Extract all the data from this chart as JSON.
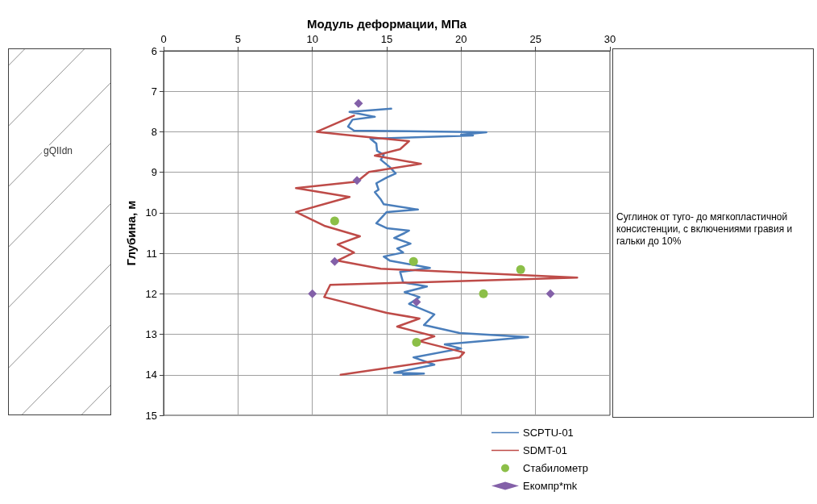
{
  "chart_data": {
    "type": "line",
    "xlabel": "Модуль деформации, МПа",
    "ylabel": "Глубина, м",
    "xlim": [
      0,
      30
    ],
    "xticks": [
      0,
      5,
      10,
      15,
      20,
      25,
      30
    ],
    "ylim": [
      15,
      6
    ],
    "yticks": [
      6,
      7,
      8,
      9,
      10,
      11,
      12,
      13,
      14,
      15
    ],
    "grid": true,
    "legend": "bottom",
    "line_style": "solid",
    "annotations": [
      "gQIIdn",
      "Суглинок от туго- до мягкопластичной консистенции, с включениями гравия и гальки до 10%"
    ],
    "series": [
      {
        "name": "SCPTU-01",
        "color": "#4a7ebb",
        "marker": "none",
        "x": [
          15.3,
          12.5,
          14.2,
          12.7,
          12.4,
          12.8,
          21.7,
          20.0,
          20.8,
          13.9,
          14.3,
          14.35,
          14.8,
          14.6,
          15.2,
          15.6,
          15.0,
          14.3,
          14.45,
          14.2,
          14.6,
          14.8,
          17.1,
          15.0,
          14.3,
          15.0,
          16.5,
          16.2,
          15.5,
          16.6,
          15.7,
          16.1,
          14.8,
          15.2,
          17.9,
          15.9,
          16.1,
          17.7,
          16.2,
          17.2,
          16.5,
          18.2,
          17.5,
          19.9,
          24.5,
          18.9,
          20.0,
          16.8,
          18.2,
          15.5,
          17.5,
          16.1
        ],
        "values": [
          7.43,
          7.51,
          7.63,
          7.7,
          7.87,
          7.97,
          8.01,
          8.07,
          8.09,
          8.17,
          8.29,
          8.47,
          8.57,
          8.69,
          8.87,
          9.03,
          9.13,
          9.27,
          9.43,
          9.49,
          9.67,
          9.79,
          9.92,
          9.98,
          10.26,
          10.38,
          10.44,
          10.5,
          10.62,
          10.76,
          10.88,
          10.98,
          11.08,
          11.18,
          11.36,
          11.46,
          11.72,
          11.82,
          11.96,
          12.08,
          12.25,
          12.51,
          12.77,
          12.97,
          13.07,
          13.25,
          13.35,
          13.57,
          13.75,
          13.95,
          13.97,
          14.0
        ]
      },
      {
        "name": "SDMT-01",
        "color": "#be4b48",
        "marker": "none",
        "x": [
          12.8,
          10.3,
          12.1,
          16.5,
          15.9,
          14.2,
          17.3,
          13.8,
          13.0,
          8.9,
          12.5,
          8.9,
          10.8,
          13.2,
          11.7,
          12.8,
          11.7,
          14.6,
          27.8,
          11.2,
          10.8,
          15.0,
          17.2,
          15.7,
          18.2,
          17.2,
          20.2,
          19.9,
          11.9
        ],
        "values": [
          7.6,
          8.0,
          8.07,
          8.23,
          8.43,
          8.59,
          8.79,
          8.99,
          9.23,
          9.39,
          9.61,
          9.98,
          10.32,
          10.58,
          10.78,
          10.98,
          11.18,
          11.38,
          11.6,
          11.78,
          12.08,
          12.47,
          12.61,
          12.81,
          13.05,
          13.17,
          13.45,
          13.57,
          14.0
        ]
      },
      {
        "name": "Стабилометр",
        "color": "#8cbf48",
        "type": "scatter",
        "marker": "circle",
        "x": [
          11.5,
          16.8,
          24,
          21.5,
          17
        ],
        "values": [
          10.2,
          11.2,
          11.4,
          12.0,
          13.2
        ]
      },
      {
        "name": "Екомпр*mk",
        "color": "#8360a8",
        "type": "scatter",
        "marker": "diamond",
        "x": [
          13.1,
          13,
          11.5,
          10,
          26,
          17
        ],
        "values": [
          7.3,
          9.2,
          11.2,
          12,
          12,
          12.2
        ]
      }
    ]
  }
}
